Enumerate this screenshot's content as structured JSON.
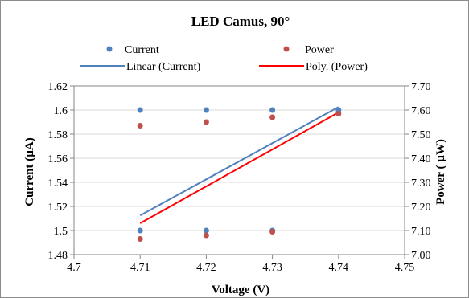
{
  "chart_data": {
    "type": "scatter",
    "title": "LED Camus, 90°",
    "xlabel": "Voltage (V)",
    "ylabel_left": "Current (µA)",
    "ylabel_right": "Power ( µW)",
    "xlim": [
      4.7,
      4.75
    ],
    "ylim_left": [
      1.48,
      1.62
    ],
    "ylim_right": [
      7.0,
      7.7
    ],
    "x_ticks": [
      "4.7",
      "4.71",
      "4.72",
      "4.73",
      "4.74",
      "4.75"
    ],
    "y_left_ticks": [
      "1.48",
      "1.5",
      "1.52",
      "1.54",
      "1.56",
      "1.58",
      "1.6",
      "1.62"
    ],
    "y_right_ticks": [
      "7.00",
      "7.10",
      "7.20",
      "7.30",
      "7.40",
      "7.50",
      "7.60",
      "7.70"
    ],
    "grid": true,
    "legend_position": "top",
    "series": [
      {
        "name": "Current",
        "axis": "left",
        "color": "#4f81bd",
        "marker": "circle",
        "points": [
          [
            4.71,
            1.5
          ],
          [
            4.71,
            1.6
          ],
          [
            4.72,
            1.5
          ],
          [
            4.72,
            1.6
          ],
          [
            4.73,
            1.5
          ],
          [
            4.73,
            1.6
          ],
          [
            4.74,
            1.6
          ]
        ]
      },
      {
        "name": "Power",
        "axis": "right",
        "color": "#c0504d",
        "marker": "circle",
        "points": [
          [
            4.71,
            7.065
          ],
          [
            4.71,
            7.535
          ],
          [
            4.72,
            7.08
          ],
          [
            4.72,
            7.55
          ],
          [
            4.73,
            7.095
          ],
          [
            4.73,
            7.57
          ],
          [
            4.74,
            7.585
          ]
        ]
      }
    ],
    "trendlines": [
      {
        "name": "Linear (Current)",
        "axis": "left",
        "color": "#4f81bd",
        "points": [
          [
            4.71,
            1.5125
          ],
          [
            4.74,
            1.6025
          ]
        ]
      },
      {
        "name": "Poly. (Power)",
        "axis": "right",
        "color": "#ff0000",
        "points": [
          [
            4.71,
            7.13
          ],
          [
            4.74,
            7.59
          ]
        ]
      }
    ]
  }
}
